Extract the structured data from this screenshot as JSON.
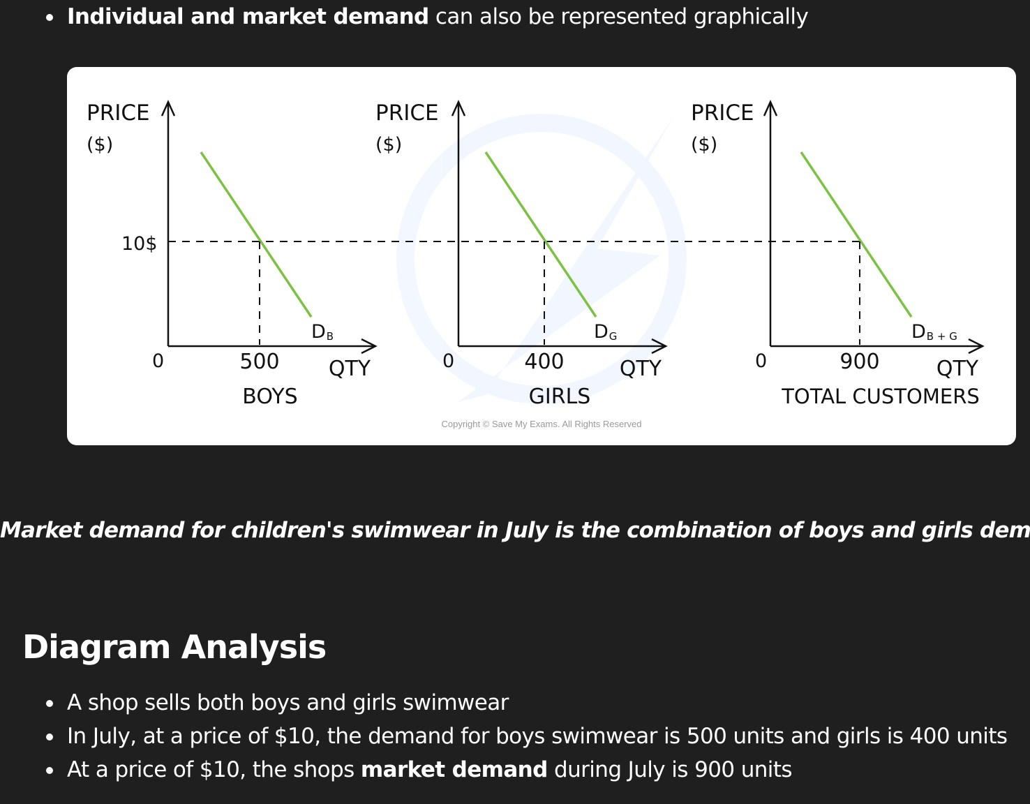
{
  "intro": {
    "bold": "Individual and market demand",
    "rest": " can also be represented graphically"
  },
  "diagram": {
    "panels": [
      {
        "y_label_1": "PRICE",
        "y_label_2": "($)",
        "origin": "0",
        "qty_value": "500",
        "x_label": "QTY",
        "group_label": "BOYS",
        "curve_main": "D",
        "curve_sub": "B"
      },
      {
        "y_label_1": "PRICE",
        "y_label_2": "($)",
        "origin": "0",
        "qty_value": "400",
        "x_label": "QTY",
        "group_label": "GIRLS",
        "curve_main": "D",
        "curve_sub": "G"
      },
      {
        "y_label_1": "PRICE",
        "y_label_2": "($)",
        "origin": "0",
        "qty_value": "900",
        "x_label": "QTY",
        "group_label": "TOTAL CUSTOMERS",
        "curve_main": "D",
        "curve_sub": "B + G"
      }
    ],
    "price_label": "10$",
    "copyright": "Copyright © Save My Exams. All Rights Reserved",
    "colors": {
      "curve": "#7cc242",
      "axis": "#111111"
    }
  },
  "caption": "Market demand for children's swimwear in July is the combination of boys and girls demand",
  "section_heading": "Diagram Analysis",
  "analysis": [
    {
      "pre": "A shop sells both boys and girls swimwear",
      "bold": "",
      "post": ""
    },
    {
      "pre": "In July, at a price of $10, the demand for boys swimwear is 500 units and girls is 400 units",
      "bold": "",
      "post": ""
    },
    {
      "pre": "At a price of $10, the shops ",
      "bold": "market demand",
      "post": " during July is 900 units"
    }
  ]
}
